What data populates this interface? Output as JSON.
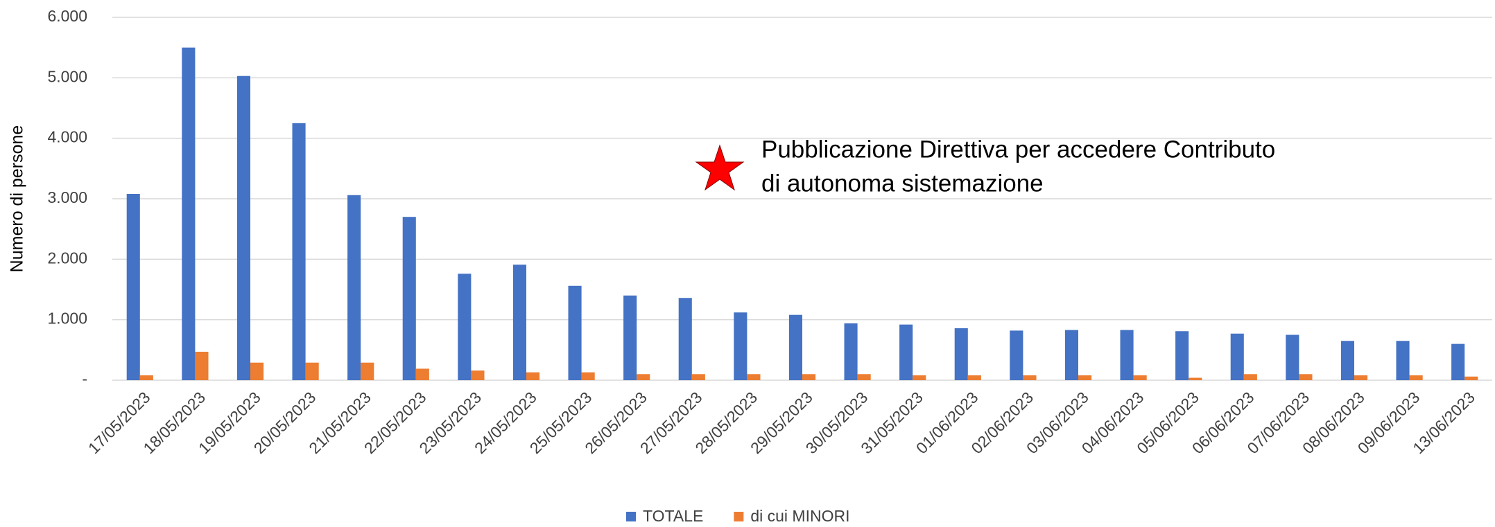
{
  "chart_data": {
    "type": "bar",
    "ylabel": "Numero di persone",
    "annotation": [
      "Pubblicazione Direttiva per accedere Contributo",
      "di autonoma sistemazione"
    ],
    "categories": [
      "17/05/2023",
      "18/05/2023",
      "19/05/2023",
      "20/05/2023",
      "21/05/2023",
      "22/05/2023",
      "23/05/2023",
      "24/05/2023",
      "25/05/2023",
      "26/05/2023",
      "27/05/2023",
      "28/05/2023",
      "29/05/2023",
      "30/05/2023",
      "31/05/2023",
      "01/06/2023",
      "02/06/2023",
      "03/06/2023",
      "04/06/2023",
      "05/06/2023",
      "06/06/2023",
      "07/06/2023",
      "08/06/2023",
      "09/06/2023",
      "13/06/2023"
    ],
    "series": [
      {
        "name": "TOTALE",
        "color": "#4472c4",
        "values": [
          3080,
          5500,
          5030,
          4250,
          3060,
          2700,
          1760,
          1910,
          1560,
          1400,
          1360,
          1120,
          1080,
          940,
          920,
          860,
          820,
          830,
          830,
          810,
          770,
          750,
          650,
          650,
          600
        ]
      },
      {
        "name": "di cui MINORI",
        "color": "#ed7d31",
        "values": [
          80,
          470,
          290,
          290,
          290,
          190,
          160,
          130,
          130,
          100,
          100,
          100,
          100,
          100,
          80,
          80,
          80,
          80,
          80,
          40,
          100,
          100,
          80,
          80,
          60
        ]
      }
    ],
    "ylim": [
      0,
      6000
    ],
    "yticks": [
      {
        "value": 0,
        "label": "-"
      },
      {
        "value": 1000,
        "label": "1.000"
      },
      {
        "value": 2000,
        "label": "2.000"
      },
      {
        "value": 3000,
        "label": "3.000"
      },
      {
        "value": 4000,
        "label": "4.000"
      },
      {
        "value": 5000,
        "label": "5.000"
      },
      {
        "value": 6000,
        "label": "6.000"
      }
    ],
    "grid": true,
    "legend": "bottom"
  }
}
